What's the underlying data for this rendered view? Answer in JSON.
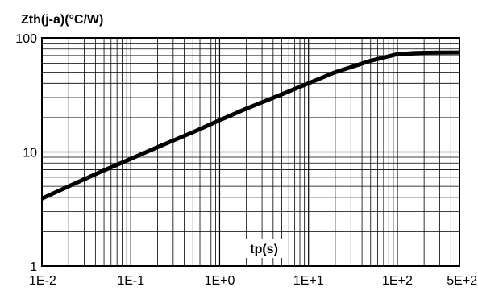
{
  "chart_data": {
    "type": "line",
    "ylabel": "Zth(j-a)(°C/W)",
    "xlabel": "tp(s)",
    "x_scale": "log",
    "y_scale": "log",
    "xlim": [
      0.01,
      500
    ],
    "ylim": [
      1,
      100
    ],
    "grid": true,
    "x_ticks": [
      "1E-2",
      "1E-1",
      "1E+0",
      "1E+1",
      "1E+2",
      "5E+2"
    ],
    "x_tick_values": [
      0.01,
      0.1,
      1,
      10,
      100,
      500
    ],
    "y_ticks": [
      "1",
      "10",
      "100"
    ],
    "y_tick_values": [
      1,
      10,
      100
    ],
    "series": [
      {
        "x": [
          0.01,
          0.02,
          0.05,
          0.1,
          0.2,
          0.5,
          1,
          2,
          5,
          10,
          20,
          50,
          100,
          150,
          200,
          300,
          500
        ],
        "y": [
          3.9,
          5.0,
          6.9,
          8.7,
          11.0,
          14.9,
          19.0,
          24.0,
          32.0,
          40.0,
          50.0,
          63.0,
          72.0,
          73.5,
          74.0,
          74.3,
          74.5
        ]
      }
    ]
  }
}
